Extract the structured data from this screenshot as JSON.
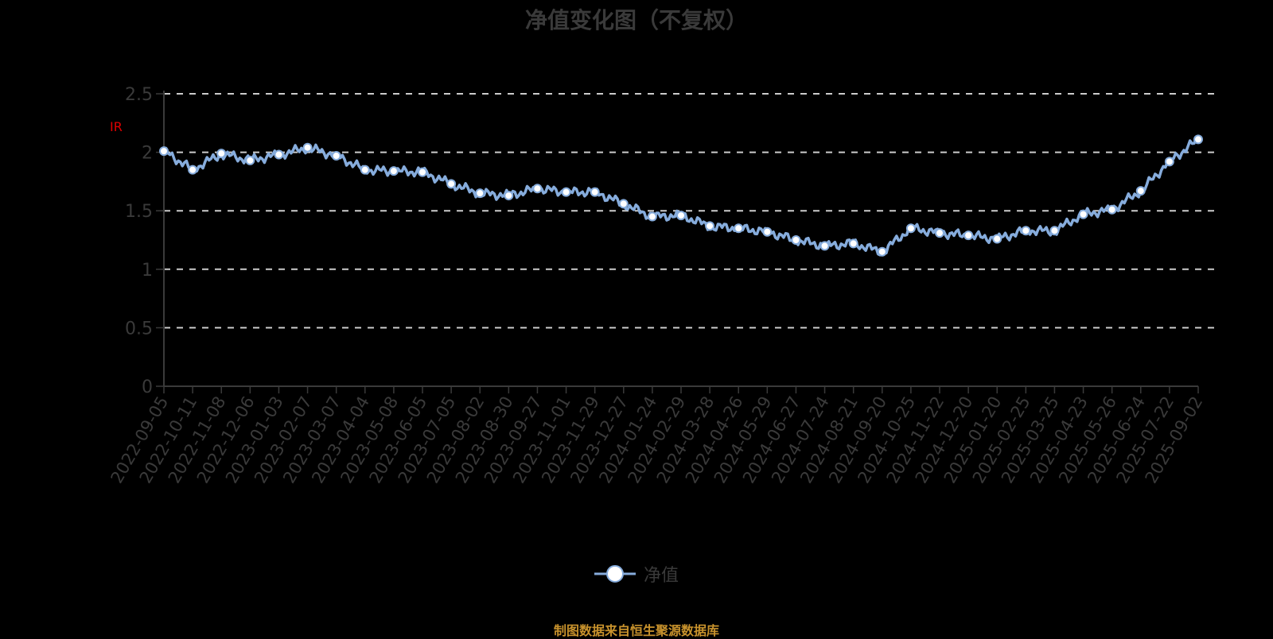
{
  "title": "净值变化图（不复权）",
  "unit_label": "IR",
  "legend": {
    "label": "净值",
    "icon": "line-circle-marker-icon"
  },
  "footer": "制图数据来自恒生聚源数据库",
  "colors": {
    "line": "#86acdc",
    "marker_fill": "#ffffff",
    "grid": "#cccccc",
    "axis": "#3a3a3a",
    "text": "#3a3a3a",
    "footer": "#c8922c",
    "unit": "#e00000",
    "background": "#000000"
  },
  "chart_data": {
    "type": "line",
    "title": "净值变化图（不复权）",
    "xlabel": "",
    "ylabel": "",
    "ylim": [
      0,
      2.5
    ],
    "yticks": [
      "0",
      "0.5",
      "1",
      "1.5",
      "2",
      "2.5"
    ],
    "grid": "horizontal dashed",
    "legend_position": "bottom-center",
    "categories": [
      "2022-09-05",
      "2022-10-11",
      "2022-11-08",
      "2022-12-06",
      "2023-01-03",
      "2023-02-07",
      "2023-03-07",
      "2023-04-04",
      "2023-05-08",
      "2023-06-05",
      "2023-07-05",
      "2023-08-02",
      "2023-08-30",
      "2023-09-27",
      "2023-11-01",
      "2023-11-29",
      "2023-12-27",
      "2024-01-24",
      "2024-02-29",
      "2024-03-28",
      "2024-04-26",
      "2024-05-29",
      "2024-06-27",
      "2024-07-24",
      "2024-08-21",
      "2024-09-20",
      "2024-10-25",
      "2024-11-22",
      "2024-12-20",
      "2025-01-20",
      "2025-02-25",
      "2025-03-25",
      "2025-04-23",
      "2025-05-26",
      "2025-06-24",
      "2025-07-22",
      "2025-09-02"
    ],
    "series": [
      {
        "name": "净值",
        "values": [
          2.01,
          1.85,
          1.99,
          1.93,
          1.98,
          2.04,
          1.97,
          1.85,
          1.84,
          1.83,
          1.73,
          1.65,
          1.63,
          1.69,
          1.66,
          1.66,
          1.56,
          1.45,
          1.46,
          1.37,
          1.35,
          1.32,
          1.25,
          1.2,
          1.22,
          1.15,
          1.35,
          1.31,
          1.29,
          1.26,
          1.33,
          1.33,
          1.47,
          1.51,
          1.67,
          1.92,
          2.11
        ]
      }
    ]
  }
}
